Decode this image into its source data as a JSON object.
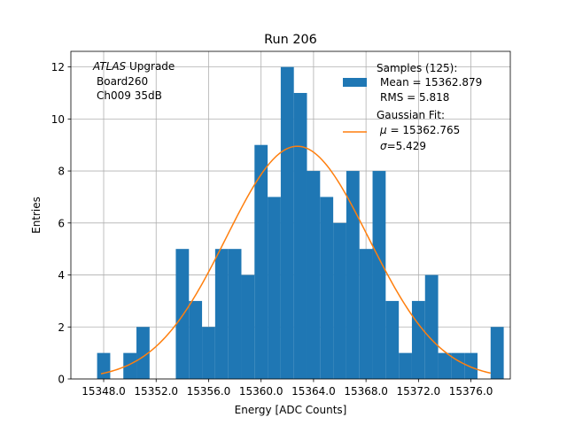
{
  "chart_data": {
    "type": "bar",
    "title": "Run 206",
    "xlabel": "Energy [ADC Counts]",
    "ylabel": "Entries",
    "xlim": [
      15345.5,
      15379.0
    ],
    "ylim": [
      0,
      12.6
    ],
    "grid": true,
    "bin_width": 1.0,
    "x_ticks": [
      15348.0,
      15352.0,
      15356.0,
      15360.0,
      15364.0,
      15368.0,
      15372.0,
      15376.0
    ],
    "x_tick_labels": [
      "15348.0",
      "15352.0",
      "15356.0",
      "15360.0",
      "15364.0",
      "15368.0",
      "15372.0",
      "15376.0"
    ],
    "y_ticks": [
      0,
      2,
      4,
      6,
      8,
      10,
      12
    ],
    "y_tick_labels": [
      "0",
      "2",
      "4",
      "6",
      "8",
      "10",
      "12"
    ],
    "bars": {
      "name": "Samples (125):",
      "color": "#1f77b4",
      "bin_starts": [
        15347.5,
        15349.5,
        15350.5,
        15353.5,
        15354.5,
        15355.5,
        15356.5,
        15357.5,
        15358.5,
        15359.5,
        15360.5,
        15361.5,
        15362.5,
        15363.5,
        15364.5,
        15365.5,
        15366.5,
        15367.5,
        15368.5,
        15369.5,
        15370.5,
        15371.5,
        15372.5,
        15373.5,
        15374.5,
        15375.5,
        15377.5
      ],
      "values": [
        1,
        1,
        2,
        5,
        3,
        2,
        5,
        5,
        4,
        9,
        7,
        12,
        11,
        8,
        7,
        6,
        8,
        5,
        8,
        3,
        1,
        3,
        4,
        1,
        1,
        1,
        2
      ]
    },
    "fit": {
      "name": "Gaussian Fit:",
      "color": "#ff7f0e",
      "mu": 15362.765,
      "sigma": 5.429,
      "amplitude": 8.95,
      "x_range": [
        15347.8,
        15377.5
      ]
    },
    "annotation": {
      "line1_italic": "ATLAS",
      "line1_rest": " Upgrade",
      "line2": "Board260",
      "line3": "Ch009 35dB"
    },
    "legend": {
      "location": "top-right",
      "samples_title": "Samples (125):",
      "samples_mean": "Mean = 15362.879",
      "samples_rms": "RMS = 5.818",
      "fit_title": "Gaussian Fit:",
      "fit_mu_symbol": "μ",
      "fit_mu_value": " = 15362.765",
      "fit_sigma_symbol": "σ",
      "fit_sigma_value": "=5.429"
    }
  }
}
